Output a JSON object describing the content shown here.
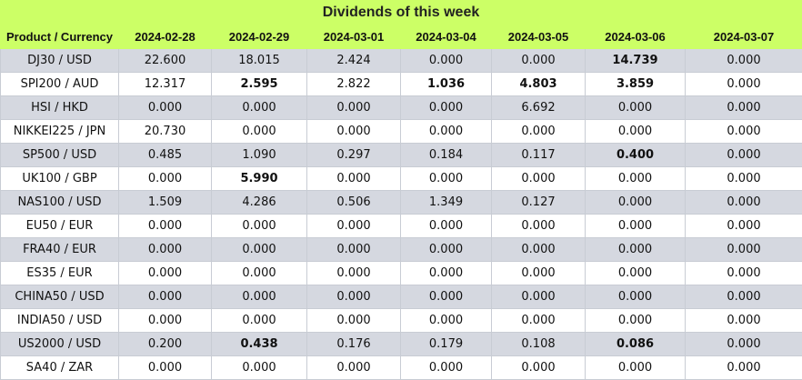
{
  "table": {
    "title": "Dividends of this week",
    "header": [
      "Product / Currency",
      "2024-02-28",
      "2024-02-29",
      "2024-03-01",
      "2024-03-04",
      "2024-03-05",
      "2024-03-06",
      "2024-03-07"
    ],
    "rows": [
      [
        "DJ30 / USD",
        "22.600",
        "18.015",
        "2.424",
        "0.000",
        "0.000",
        {
          "text": "14.739",
          "bold": true
        },
        "0.000"
      ],
      [
        "SPI200 / AUD",
        "12.317",
        {
          "text": "2.595",
          "bold": true
        },
        "2.822",
        {
          "text": "1.036",
          "bold": true
        },
        {
          "text": "4.803",
          "bold": true
        },
        {
          "text": "3.859",
          "bold": true
        },
        "0.000"
      ],
      [
        "HSI / HKD",
        "0.000",
        "0.000",
        "0.000",
        "0.000",
        "6.692",
        "0.000",
        "0.000"
      ],
      [
        "NIKKEI225 / JPN",
        "20.730",
        "0.000",
        "0.000",
        "0.000",
        "0.000",
        "0.000",
        "0.000"
      ],
      [
        "SP500 / USD",
        "0.485",
        "1.090",
        "0.297",
        "0.184",
        "0.117",
        {
          "text": "0.400",
          "bold": true
        },
        "0.000"
      ],
      [
        "UK100 / GBP",
        "0.000",
        {
          "text": "5.990",
          "bold": true
        },
        "0.000",
        "0.000",
        "0.000",
        "0.000",
        "0.000"
      ],
      [
        "NAS100 / USD",
        "1.509",
        "4.286",
        "0.506",
        "1.349",
        "0.127",
        "0.000",
        "0.000"
      ],
      [
        "EU50 / EUR",
        "0.000",
        "0.000",
        "0.000",
        "0.000",
        "0.000",
        "0.000",
        "0.000"
      ],
      [
        "FRA40 / EUR",
        "0.000",
        "0.000",
        "0.000",
        "0.000",
        "0.000",
        "0.000",
        "0.000"
      ],
      [
        "ES35 / EUR",
        "0.000",
        "0.000",
        "0.000",
        "0.000",
        "0.000",
        "0.000",
        "0.000"
      ],
      [
        "CHINA50 / USD",
        "0.000",
        "0.000",
        "0.000",
        "0.000",
        "0.000",
        "0.000",
        "0.000"
      ],
      [
        "INDIA50 / USD",
        "0.000",
        "0.000",
        "0.000",
        "0.000",
        "0.000",
        "0.000",
        "0.000"
      ],
      [
        "US2000 / USD",
        "0.200",
        {
          "text": "0.438",
          "bold": true
        },
        "0.176",
        "0.179",
        "0.108",
        {
          "text": "0.086",
          "bold": true
        },
        "0.000"
      ],
      [
        "SA40 / ZAR",
        "0.000",
        "0.000",
        "0.000",
        "0.000",
        "0.000",
        "0.000",
        "0.000"
      ]
    ]
  }
}
